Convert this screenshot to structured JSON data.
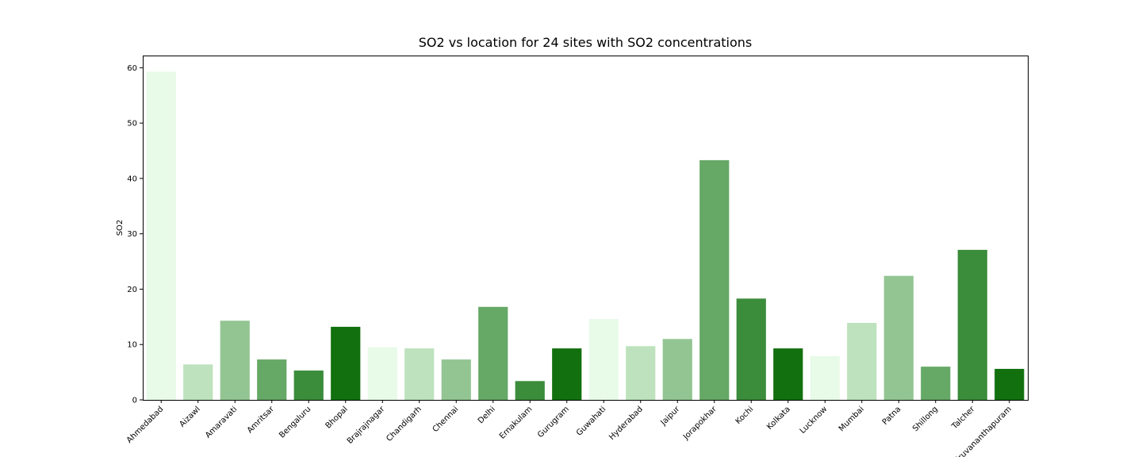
{
  "chart_data": {
    "type": "bar",
    "title": "SO2 vs location for 24 sites with SO2 concentrations",
    "xlabel": "",
    "ylabel": "SO2",
    "ylim": [
      0,
      62.2
    ],
    "yticks": [
      0,
      10,
      20,
      30,
      40,
      50,
      60
    ],
    "grid": false,
    "categories": [
      "Ahmedabad",
      "Aizawl",
      "Amaravati",
      "Amritsar",
      "Bengaluru",
      "Bhopal",
      "Brajrajnagar",
      "Chandigarh",
      "Chennai",
      "Delhi",
      "Ernakulam",
      "Gurugram",
      "Guwahati",
      "Hyderabad",
      "Jaipur",
      "Jorapokhar",
      "Kochi",
      "Kolkata",
      "Lucknow",
      "Mumbai",
      "Patna",
      "Shillong",
      "Talcher",
      "Thiruvananthapuram"
    ],
    "values": [
      59.3,
      6.4,
      14.3,
      7.3,
      5.3,
      13.2,
      9.5,
      9.3,
      7.3,
      16.8,
      3.4,
      9.3,
      14.6,
      9.7,
      11.0,
      43.3,
      18.3,
      9.3,
      7.9,
      13.9,
      22.4,
      6.0,
      27.1,
      5.6
    ],
    "palette": [
      "#e8fae8",
      "#bde2bd",
      "#93c593",
      "#66a866",
      "#3b8c3b",
      "#12700f"
    ]
  }
}
